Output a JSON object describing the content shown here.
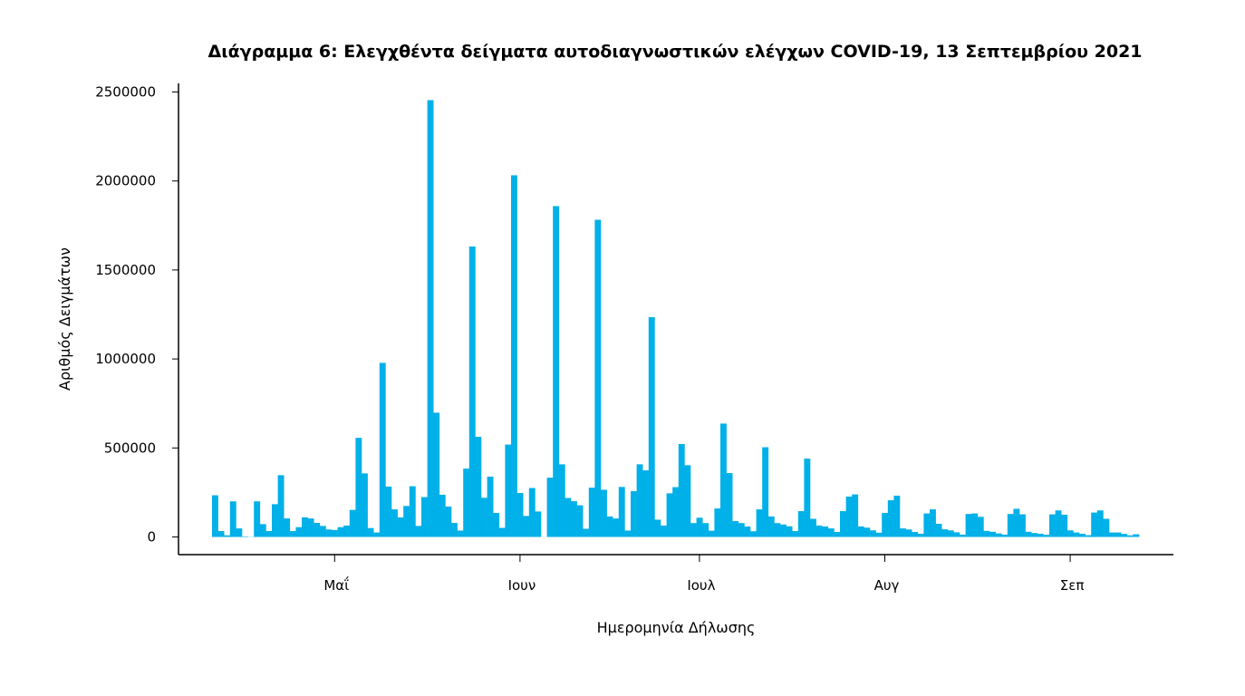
{
  "chart_data": {
    "type": "bar",
    "title": "Διάγραμμα 6: Ελεγχθέντα δείγματα αυτοδιαγνωστικών ελέγχων COVID-19, 13 Σεπτεμβρίου 2021",
    "xlabel": "Ημερομηνία Δήλωσης",
    "ylabel": "Αριθμός Δειγμάτων",
    "x_range": [
      "2021-04-11",
      "2021-09-12"
    ],
    "x_frequency": "daily",
    "xticks": [
      {
        "label": "Μαΐ",
        "date": "2021-05-01"
      },
      {
        "label": "Ιουν",
        "date": "2021-06-01"
      },
      {
        "label": "Ιουλ",
        "date": "2021-07-01"
      },
      {
        "label": "Αυγ",
        "date": "2021-08-01"
      },
      {
        "label": "Σεπ",
        "date": "2021-09-01"
      }
    ],
    "yticks": [
      "0",
      "500000",
      "1000000",
      "1500000",
      "2000000",
      "2500000"
    ],
    "ylim": [
      0,
      2500000
    ],
    "grid": false,
    "bar_color": "#00b0e8",
    "values": [
      234000,
      33000,
      9000,
      200000,
      48000,
      3000,
      1000,
      200000,
      72000,
      33000,
      184000,
      347000,
      104000,
      33000,
      55000,
      110000,
      104000,
      79000,
      62000,
      42000,
      39000,
      55000,
      64000,
      152000,
      557000,
      357000,
      50000,
      25000,
      978000,
      283000,
      155000,
      110000,
      174000,
      285000,
      62000,
      224000,
      2454000,
      698000,
      237000,
      171000,
      79000,
      36000,
      384000,
      1632000,
      563000,
      220000,
      339000,
      135000,
      51000,
      519000,
      2032000,
      247000,
      118000,
      275000,
      143000,
      0,
      333000,
      1859000,
      408000,
      219000,
      201000,
      178000,
      46000,
      277000,
      1782000,
      265000,
      115000,
      104000,
      281000,
      36000,
      257000,
      408000,
      374000,
      1235000,
      97000,
      64000,
      245000,
      280000,
      522000,
      403000,
      78000,
      108000,
      78000,
      35000,
      160000,
      637000,
      359000,
      89000,
      78000,
      59000,
      32000,
      155000,
      504000,
      115000,
      78000,
      70000,
      60000,
      33000,
      145000,
      440000,
      102000,
      64000,
      59000,
      48000,
      28000,
      145000,
      227000,
      239000,
      59000,
      52000,
      37000,
      24000,
      135000,
      206000,
      232000,
      48000,
      42000,
      28000,
      18000,
      132000,
      155000,
      74000,
      43000,
      37000,
      26000,
      13000,
      129000,
      132000,
      113000,
      34000,
      29000,
      20000,
      13000,
      129000,
      158000,
      127000,
      29000,
      22000,
      18000,
      12000,
      127000,
      149000,
      125000,
      37000,
      25000,
      18000,
      10000,
      137000,
      149000,
      102000,
      25000,
      25000,
      17000,
      9000,
      15000
    ]
  }
}
